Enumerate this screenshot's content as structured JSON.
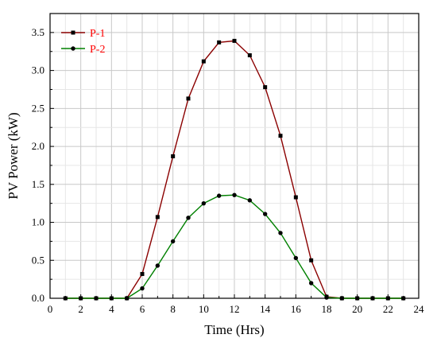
{
  "chart_data": {
    "type": "line",
    "xlabel": "Time (Hrs)",
    "ylabel": "PV Power (kW)",
    "xlim": [
      0,
      24
    ],
    "ylim": [
      0,
      3.75
    ],
    "x_ticks": [
      "0",
      "2",
      "4",
      "6",
      "8",
      "10",
      "12",
      "14",
      "16",
      "18",
      "20",
      "22",
      "24"
    ],
    "y_ticks": [
      "0.0",
      "0.5",
      "1.0",
      "1.5",
      "2.0",
      "2.5",
      "3.0",
      "3.5"
    ],
    "grid": true,
    "legend_position": "top-left",
    "series": [
      {
        "name": "P-1",
        "color": "#8b0000",
        "label_color": "#ff0000",
        "marker": "square",
        "x": [
          1,
          2,
          3,
          4,
          5,
          6,
          7,
          8,
          9,
          10,
          11,
          12,
          13,
          14,
          15,
          16,
          17,
          18,
          19,
          20,
          21,
          22,
          23
        ],
        "values": [
          0,
          0,
          0,
          0,
          0,
          0.32,
          1.07,
          1.87,
          2.63,
          3.12,
          3.37,
          3.39,
          3.2,
          2.78,
          2.14,
          1.33,
          0.5,
          0.02,
          0,
          0,
          0,
          0,
          0
        ]
      },
      {
        "name": "P-2",
        "color": "#008000",
        "label_color": "#ff0000",
        "marker": "circle",
        "x": [
          1,
          2,
          3,
          4,
          5,
          6,
          7,
          8,
          9,
          10,
          11,
          12,
          13,
          14,
          15,
          16,
          17,
          18,
          19,
          20,
          21,
          22,
          23
        ],
        "values": [
          0,
          0,
          0,
          0,
          0,
          0.13,
          0.43,
          0.75,
          1.06,
          1.25,
          1.35,
          1.36,
          1.29,
          1.11,
          0.86,
          0.53,
          0.2,
          0.01,
          0,
          0,
          0,
          0,
          0
        ]
      }
    ]
  }
}
